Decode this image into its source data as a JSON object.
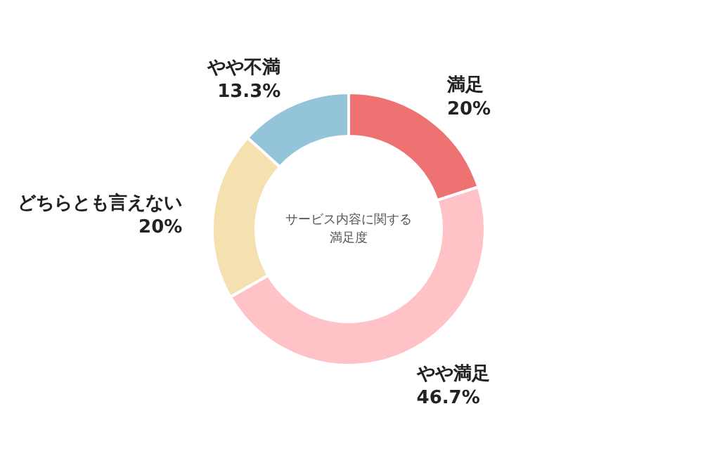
{
  "chart_data": {
    "type": "donut",
    "title": "サービス内容に関する満足度",
    "categories": [
      "満足",
      "やや満足",
      "どちらとも言えない",
      "やや不満"
    ],
    "values": [
      20,
      46.7,
      20,
      13.3
    ],
    "value_labels": [
      "20%",
      "46.7%",
      "20%",
      "13.3%"
    ],
    "colors": [
      "#ee7272",
      "#ffc2c6",
      "#f5e0b0",
      "#93c4d9"
    ]
  }
}
